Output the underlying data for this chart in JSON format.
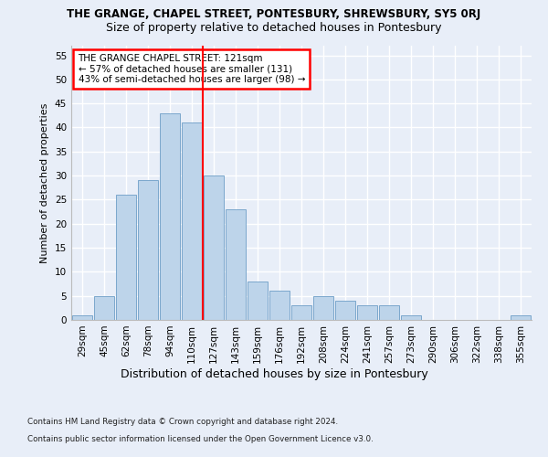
{
  "title": "THE GRANGE, CHAPEL STREET, PONTESBURY, SHREWSBURY, SY5 0RJ",
  "subtitle": "Size of property relative to detached houses in Pontesbury",
  "xlabel": "Distribution of detached houses by size in Pontesbury",
  "ylabel": "Number of detached properties",
  "categories": [
    "29sqm",
    "45sqm",
    "62sqm",
    "78sqm",
    "94sqm",
    "110sqm",
    "127sqm",
    "143sqm",
    "159sqm",
    "176sqm",
    "192sqm",
    "208sqm",
    "224sqm",
    "241sqm",
    "257sqm",
    "273sqm",
    "290sqm",
    "306sqm",
    "322sqm",
    "338sqm",
    "355sqm"
  ],
  "values": [
    1,
    5,
    26,
    29,
    43,
    41,
    30,
    23,
    8,
    6,
    3,
    5,
    4,
    3,
    3,
    1,
    0,
    0,
    0,
    0,
    1
  ],
  "bar_color": "#BDD4EA",
  "bar_edge_color": "#7BA7CC",
  "vline_x": 5.5,
  "vline_color": "red",
  "annotation_text": "THE GRANGE CHAPEL STREET: 121sqm\n← 57% of detached houses are smaller (131)\n43% of semi-detached houses are larger (98) →",
  "annotation_box_color": "white",
  "annotation_box_edge": "red",
  "ylim": [
    0,
    57
  ],
  "yticks": [
    0,
    5,
    10,
    15,
    20,
    25,
    30,
    35,
    40,
    45,
    50,
    55
  ],
  "footer1": "Contains HM Land Registry data © Crown copyright and database right 2024.",
  "footer2": "Contains public sector information licensed under the Open Government Licence v3.0.",
  "bg_color": "#E8EEF8",
  "plot_bg_color": "#E8EEF8",
  "title_fontsize": 8.5,
  "subtitle_fontsize": 9,
  "ylabel_fontsize": 8,
  "tick_fontsize": 7.5,
  "annotation_fontsize": 7.5,
  "xlabel_fontsize": 9
}
